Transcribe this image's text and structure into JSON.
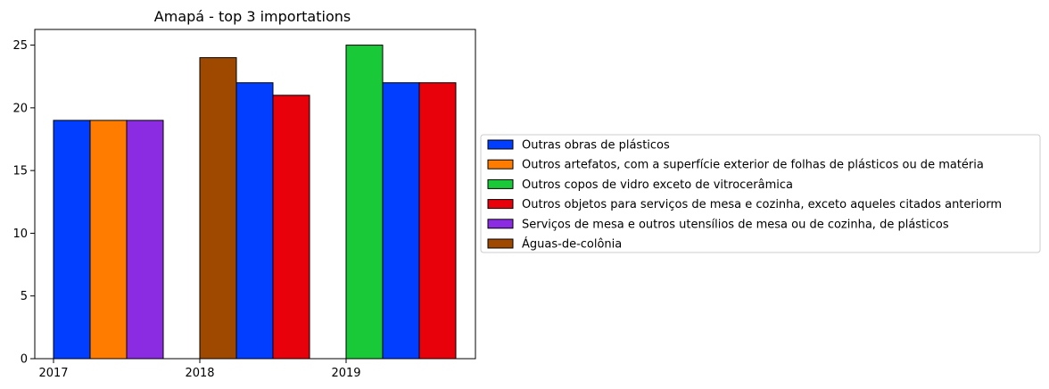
{
  "chart_data": {
    "type": "bar",
    "title": "Amapá - top 3 importations",
    "xlabel": "",
    "ylabel": "",
    "ylim": [
      0,
      26.25
    ],
    "yticks": [
      0,
      5,
      10,
      15,
      20,
      25
    ],
    "x_ticks": [
      "2017",
      "2018",
      "2019"
    ],
    "grid": false,
    "legend_placement": "right",
    "series": [
      {
        "name": "Outras obras de plásticos",
        "color": "#023eff"
      },
      {
        "name": "Outros artefatos, com a superfície exterior de folhas de plásticos ou de matéria",
        "color": "#ff7c00"
      },
      {
        "name": "Outros copos de vidro exceto de vitrocerâmica",
        "color": "#1ac938"
      },
      {
        "name": "Outros objetos para serviços de mesa e cozinha, exceto aqueles citados anteriorm",
        "color": "#e8000b"
      },
      {
        "name": "Serviços de mesa e outros utensílios de mesa ou de cozinha, de plásticos",
        "color": "#8b2be2"
      },
      {
        "name": "Águas-de-colônia",
        "color": "#9f4800"
      }
    ],
    "bars": [
      {
        "year": "2017",
        "series": 0,
        "value": 19
      },
      {
        "year": "2017",
        "series": 1,
        "value": 19
      },
      {
        "year": "2017",
        "series": 4,
        "value": 19
      },
      {
        "year": "2018",
        "series": 5,
        "value": 24
      },
      {
        "year": "2018",
        "series": 0,
        "value": 22
      },
      {
        "year": "2018",
        "series": 3,
        "value": 21
      },
      {
        "year": "2019",
        "series": 2,
        "value": 25
      },
      {
        "year": "2019",
        "series": 0,
        "value": 22
      },
      {
        "year": "2019",
        "series": 3,
        "value": 22
      }
    ]
  }
}
